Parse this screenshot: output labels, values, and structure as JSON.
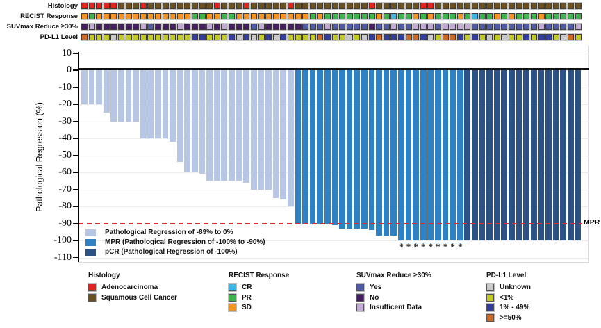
{
  "figure_type": "waterfall-oncoprint",
  "palette": {
    "adeno": "#e2241f",
    "squam": "#6b5122",
    "cr": "#3ab6e8",
    "pr": "#3cb44b",
    "sd": "#f6921e",
    "suv_yes": "#4f5ba6",
    "suv_no": "#471d61",
    "suv_insuf": "#c4aad6",
    "pdl1_unknown": "#c9c9c9",
    "pdl1_lt1": "#c2ca25",
    "pdl1_1_49": "#333e9c",
    "pdl1_ge50": "#cc6b29",
    "bar_light": "#b7c6e4",
    "bar_mid": "#2e82c4",
    "bar_dark": "#2c5185",
    "mpr_line": "#e8282c"
  },
  "annotations": {
    "rows": [
      {
        "label": "Histology",
        "code_map": {
          "A": "adeno",
          "S": "squam"
        },
        "codes": [
          "A",
          "A",
          "A",
          "A",
          "A",
          "S",
          "S",
          "S",
          "A",
          "S",
          "S",
          "S",
          "S",
          "S",
          "S",
          "S",
          "S",
          "S",
          "A",
          "S",
          "S",
          "S",
          "A",
          "S",
          "S",
          "S",
          "S",
          "S",
          "A",
          "S",
          "S",
          "S",
          "S",
          "S",
          "S",
          "S",
          "S",
          "S",
          "S",
          "A",
          "S",
          "S",
          "S",
          "S",
          "S",
          "S",
          "A",
          "A",
          "S",
          "S",
          "S",
          "S",
          "S",
          "S",
          "S",
          "S",
          "S",
          "S",
          "S",
          "S",
          "S",
          "S",
          "S",
          "S",
          "S",
          "S",
          "S",
          "S"
        ]
      },
      {
        "label": "RECIST Response",
        "code_map": {
          "C": "cr",
          "G": "pr",
          "O": "sd"
        },
        "codes": [
          "O",
          "G",
          "O",
          "O",
          "O",
          "O",
          "O",
          "O",
          "O",
          "O",
          "O",
          "O",
          "O",
          "O",
          "O",
          "G",
          "G",
          "O",
          "O",
          "G",
          "G",
          "O",
          "O",
          "O",
          "O",
          "O",
          "O",
          "O",
          "O",
          "O",
          "O",
          "G",
          "O",
          "G",
          "G",
          "G",
          "G",
          "G",
          "G",
          "G",
          "O",
          "G",
          "C",
          "G",
          "G",
          "O",
          "G",
          "O",
          "G",
          "G",
          "G",
          "O",
          "G",
          "C",
          "G",
          "G",
          "O",
          "G",
          "O",
          "G",
          "G",
          "G",
          "O",
          "G",
          "G",
          "G",
          "G",
          "G"
        ]
      },
      {
        "label": "SUVmax Reduce ≥30%",
        "code_map": {
          "Y": "suv_yes",
          "N": "suv_no",
          "I": "suv_insuf"
        },
        "codes": [
          "N",
          "I",
          "N",
          "N",
          "N",
          "N",
          "N",
          "N",
          "I",
          "Y",
          "N",
          "N",
          "N",
          "I",
          "N",
          "N",
          "N",
          "I",
          "N",
          "I",
          "N",
          "N",
          "N",
          "Y",
          "I",
          "N",
          "N",
          "N",
          "N",
          "N",
          "Y",
          "Y",
          "Y",
          "I",
          "Y",
          "Y",
          "Y",
          "Y",
          "Y",
          "N",
          "Y",
          "Y",
          "I",
          "Y",
          "Y",
          "I",
          "I",
          "I",
          "Y",
          "I",
          "I",
          "I",
          "I",
          "Y",
          "Y",
          "Y",
          "Y",
          "Y",
          "Y",
          "Y",
          "Y",
          "Y",
          "I",
          "Y",
          "Y",
          "Y",
          "Y",
          "I"
        ]
      },
      {
        "label": "PD-L1 Level",
        "code_map": {
          "U": "pdl1_unknown",
          "Y1": "pdl1_lt1",
          "B": "pdl1_1_49",
          "O5": "pdl1_ge50"
        },
        "codes": [
          "O5",
          "Y1",
          "Y1",
          "Y1",
          "U",
          "Y1",
          "Y1",
          "Y1",
          "Y1",
          "Y1",
          "Y1",
          "Y1",
          "Y1",
          "Y1",
          "Y1",
          "B",
          "B",
          "Y1",
          "Y1",
          "Y1",
          "B",
          "U",
          "B",
          "U",
          "Y1",
          "B",
          "U",
          "B",
          "Y1",
          "Y1",
          "Y1",
          "Y1",
          "O5",
          "B",
          "Y1",
          "Y1",
          "U",
          "Y1",
          "U",
          "B",
          "O5",
          "B",
          "B",
          "B",
          "O5",
          "O5",
          "B",
          "U",
          "Y1",
          "O5",
          "O5",
          "B",
          "Y1",
          "B",
          "Y1",
          "U",
          "Y1",
          "U",
          "Y1",
          "Y1",
          "B",
          "Y1",
          "B",
          "B",
          "Y1",
          "U",
          "O5",
          "Y1"
        ]
      }
    ]
  },
  "chart_data": {
    "type": "bar",
    "title": "",
    "ylabel": "Pathological Regression (%)",
    "ylim": [
      -110,
      10
    ],
    "yticks": [
      10,
      0,
      -10,
      -20,
      -30,
      -40,
      -50,
      -60,
      -70,
      -80,
      -90,
      -100,
      -110
    ],
    "n_patients": 68,
    "values": [
      -20,
      -20,
      -20,
      -25,
      -30,
      -30,
      -30,
      -30,
      -40,
      -40,
      -40,
      -40,
      -42,
      -54,
      -60,
      -60,
      -61,
      -65,
      -65,
      -65,
      -65,
      -65,
      -66,
      -70,
      -70,
      -70,
      -75,
      -76,
      -80,
      -90,
      -90,
      -90,
      -90,
      -90,
      -91,
      -93,
      -93,
      -93,
      -93,
      -94,
      -97,
      -97,
      -97,
      -100,
      -100,
      -100,
      -100,
      -100,
      -100,
      -100,
      -100,
      -100,
      -100,
      -100,
      -100,
      -100,
      -100,
      -100,
      -100,
      -100,
      -100,
      -100,
      -100,
      -100,
      -100,
      -100,
      -100,
      -100
    ],
    "groups": [
      "L",
      "L",
      "L",
      "L",
      "L",
      "L",
      "L",
      "L",
      "L",
      "L",
      "L",
      "L",
      "L",
      "L",
      "L",
      "L",
      "L",
      "L",
      "L",
      "L",
      "L",
      "L",
      "L",
      "L",
      "L",
      "L",
      "L",
      "L",
      "L",
      "M",
      "M",
      "M",
      "M",
      "M",
      "M",
      "M",
      "M",
      "M",
      "M",
      "M",
      "M",
      "M",
      "M",
      "M",
      "M",
      "M",
      "M",
      "M",
      "M",
      "M",
      "M",
      "M",
      "D",
      "D",
      "D",
      "D",
      "D",
      "D",
      "D",
      "D",
      "D",
      "D",
      "D",
      "D",
      "D",
      "D",
      "D",
      "D"
    ],
    "asterisk_indices": [
      43,
      44,
      45,
      46,
      47,
      48,
      49,
      50,
      51
    ],
    "mpr_threshold": -90,
    "mpr_label": "MPR",
    "legend": [
      {
        "color": "bar_light",
        "label": "Pathological Regression of -89% to 0%"
      },
      {
        "color": "bar_mid",
        "label": "MPR (Pathological Regression of -100% to -90%)"
      },
      {
        "color": "bar_dark",
        "label": "pCR (Pathological Regression of -100%)"
      }
    ]
  },
  "bottom_legend": [
    {
      "title": "Histology",
      "items": [
        {
          "color": "adeno",
          "label": "Adenocarcinoma"
        },
        {
          "color": "squam",
          "label": "Squamous Cell Cancer"
        }
      ]
    },
    {
      "title": "RECIST Response",
      "items": [
        {
          "color": "cr",
          "label": "CR"
        },
        {
          "color": "pr",
          "label": "PR"
        },
        {
          "color": "sd",
          "label": "SD"
        }
      ]
    },
    {
      "title": "SUVmax Reduce ≥30%",
      "items": [
        {
          "color": "suv_yes",
          "label": "Yes"
        },
        {
          "color": "suv_no",
          "label": "No"
        },
        {
          "color": "suv_insuf",
          "label": "Insufficent Data"
        }
      ]
    },
    {
      "title": "PD-L1 Level",
      "items": [
        {
          "color": "pdl1_unknown",
          "label": "Unknown"
        },
        {
          "color": "pdl1_lt1",
          "label": "<1%"
        },
        {
          "color": "pdl1_1_49",
          "label": "1% - 49%"
        },
        {
          "color": "pdl1_ge50",
          "label": ">=50%"
        }
      ]
    }
  ]
}
